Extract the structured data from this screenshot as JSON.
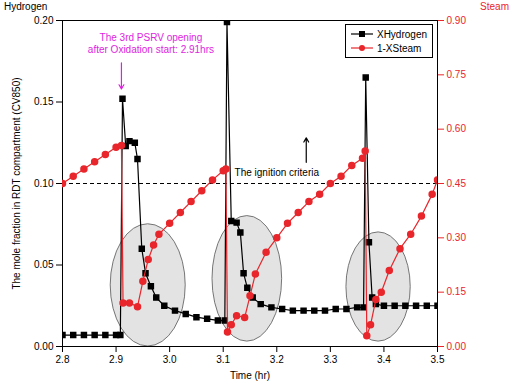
{
  "chart_data": {
    "type": "line",
    "x_label": "Time (hr)",
    "y_label": "The mole fraction in RDT compartment (CV850)",
    "y_header": "Hydrogen",
    "y2_header": "Steam",
    "xlim": [
      2.8,
      3.5
    ],
    "xticks": [
      2.8,
      2.9,
      {
        "value": 3,
        "label": "3.0"
      },
      3.1,
      3.2,
      3.3,
      3.4,
      3.5
    ],
    "ylim": [
      0,
      0.2
    ],
    "yticks": [
      {
        "value": 0,
        "label": "0.00"
      },
      0.05,
      {
        "value": 0.1,
        "label": "0.10"
      },
      0.15,
      {
        "value": 0.2,
        "label": "0.20"
      }
    ],
    "y2lim": [
      0,
      0.9
    ],
    "y2ticks": [
      {
        "value": 0,
        "label": "0.00"
      },
      0.15,
      {
        "value": 0.3,
        "label": "0.30"
      },
      0.45,
      {
        "value": 0.6,
        "label": "0.60"
      },
      0.75,
      {
        "value": 0.9,
        "label": "0.90"
      }
    ],
    "legend": "top-right",
    "series": [
      {
        "name": "XHydrogen",
        "color": "#000000",
        "marker": "square",
        "line_style": "solid",
        "x": [
          2.8,
          2.82,
          2.84,
          2.86,
          2.88,
          2.9,
          2.908,
          2.912,
          2.918,
          2.925,
          2.935,
          2.94,
          2.948,
          2.955,
          2.965,
          2.975,
          2.99,
          3.01,
          3.03,
          3.05,
          3.07,
          3.09,
          3.103,
          3.107,
          3.115,
          3.125,
          3.132,
          3.138,
          3.145,
          3.155,
          3.17,
          3.19,
          3.21,
          3.23,
          3.25,
          3.27,
          3.29,
          3.31,
          3.33,
          3.35,
          3.362,
          3.366,
          3.372,
          3.378,
          3.385,
          3.4,
          3.42,
          3.44,
          3.46,
          3.48,
          3.5
        ],
        "values": [
          0.007,
          0.007,
          0.007,
          0.007,
          0.007,
          0.007,
          0.007,
          0.152,
          0.123,
          0.126,
          0.125,
          0.115,
          0.06,
          0.045,
          0.037,
          0.03,
          0.025,
          0.022,
          0.02,
          0.018,
          0.017,
          0.016,
          0.016,
          0.199,
          0.077,
          0.076,
          0.07,
          0.045,
          0.036,
          0.03,
          0.026,
          0.024,
          0.023,
          0.022,
          0.022,
          0.022,
          0.022,
          0.023,
          0.023,
          0.024,
          0.024,
          0.165,
          0.064,
          0.03,
          0.026,
          0.025,
          0.025,
          0.025,
          0.025,
          0.025,
          0.025
        ]
      },
      {
        "name": "1-XSteam",
        "color": "#e8262b",
        "marker": "circle",
        "line_style": "solid",
        "axis": "y2",
        "x": [
          2.8,
          2.82,
          2.84,
          2.86,
          2.88,
          2.9,
          2.91,
          2.913,
          2.925,
          2.94,
          2.95,
          2.96,
          2.97,
          2.98,
          3.0,
          3.02,
          3.04,
          3.06,
          3.08,
          3.1,
          3.105,
          3.108,
          3.115,
          3.125,
          3.14,
          3.15,
          3.16,
          3.18,
          3.2,
          3.22,
          3.24,
          3.26,
          3.28,
          3.3,
          3.32,
          3.34,
          3.36,
          3.365,
          3.368,
          3.375,
          3.385,
          3.395,
          3.41,
          3.43,
          3.45,
          3.47,
          3.49,
          3.5
        ],
        "values": [
          0.45,
          0.47,
          0.49,
          0.51,
          0.53,
          0.55,
          0.555,
          0.12,
          0.12,
          0.11,
          0.18,
          0.24,
          0.28,
          0.31,
          0.34,
          0.37,
          0.4,
          0.43,
          0.46,
          0.485,
          0.49,
          0.04,
          0.06,
          0.085,
          0.08,
          0.14,
          0.2,
          0.26,
          0.3,
          0.34,
          0.37,
          0.4,
          0.42,
          0.45,
          0.47,
          0.5,
          0.52,
          0.54,
          0.03,
          0.06,
          0.13,
          0.15,
          0.21,
          0.27,
          0.31,
          0.36,
          0.42,
          0.46
        ]
      }
    ],
    "reference_lines": [
      {
        "y": 0.1,
        "line_style": "dashed",
        "color": "#000000"
      }
    ],
    "annotations": [
      {
        "text": "The 3rd PSRV opening\nafter Oxidation start: 2.91hrs",
        "x": 2.965,
        "y": 0.186,
        "color": "#e01ee0",
        "arrow": {
          "x1": 2.91,
          "y1": 0.174,
          "x2": 2.91,
          "y2": 0.158
        }
      },
      {
        "text": "The ignition criteria",
        "x": 3.2,
        "y": 0.107,
        "color": "#000000",
        "arrow": {
          "x1": 3.255,
          "y1": 0.113,
          "x2": 3.255,
          "y2": 0.128
        }
      }
    ],
    "highlights": [
      {
        "x": [
          2.89,
          3.03
        ],
        "y": [
          0.0,
          0.075
        ]
      },
      {
        "x": [
          3.08,
          3.21
        ],
        "y": [
          0.003,
          0.08
        ]
      },
      {
        "x": [
          3.33,
          3.45
        ],
        "y": [
          0.003,
          0.07
        ]
      }
    ]
  }
}
